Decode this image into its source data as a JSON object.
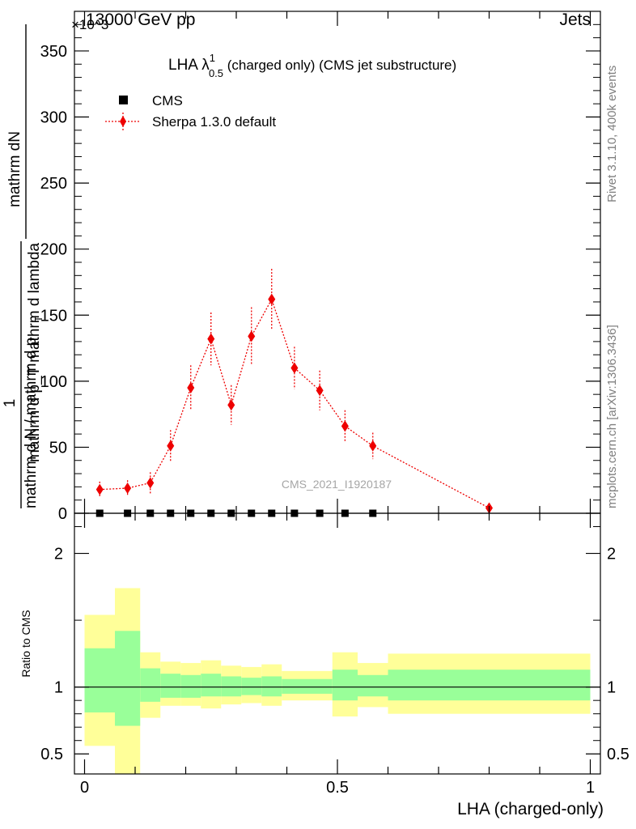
{
  "header": {
    "left": "13000 GeV pp",
    "right": "Jets",
    "exponent": "×10^3"
  },
  "side_labels": {
    "rivet": "Rivet 3.1.10,  400k events",
    "mcplots": "mcplots.cern.ch [arXiv:1306.3436]"
  },
  "chart_data": [
    {
      "type": "line",
      "title_main": "LHA λ",
      "title_sup": "1",
      "title_sub": "0.5",
      "title_rest": " (charged only) (CMS jet substructure)",
      "ylabel_num": "mathrm dN",
      "ylabel_den1": "mathrm d p_T mathrm d lambda",
      "ylabel_sub": "T",
      "ylabel_one": "1",
      "ylabel_line1": "mathrm d N / mathrm d p",
      "ylabel_line2": " mathrm d p  mathrm d lambda",
      "ylabel_prefix": "mathrm d N / mathrm d p",
      "ylim": [
        0,
        380
      ],
      "y_unit_scale": 1000,
      "yticks": [
        0,
        50,
        100,
        150,
        200,
        250,
        300,
        350
      ],
      "ytick_labels": [
        "0",
        "50",
        "100",
        "150",
        "200",
        "250",
        "300",
        "350"
      ],
      "xlim": [
        -0.02,
        1.02
      ],
      "watermark": "CMS_2021_I1920187",
      "legend": [
        "CMS",
        "Sherpa 1.3.0 default"
      ],
      "series": [
        {
          "name": "CMS",
          "x": [
            0.03,
            0.085,
            0.13,
            0.17,
            0.21,
            0.25,
            0.29,
            0.33,
            0.37,
            0.415,
            0.465,
            0.515,
            0.57
          ],
          "y": [
            0,
            0,
            0,
            0,
            0,
            0,
            0,
            0,
            0,
            0,
            0,
            0,
            0
          ]
        },
        {
          "name": "Sherpa 1.3.0 default",
          "x": [
            0.03,
            0.085,
            0.13,
            0.17,
            0.21,
            0.25,
            0.29,
            0.33,
            0.37,
            0.415,
            0.465,
            0.515,
            0.57,
            0.8
          ],
          "y": [
            18,
            19,
            23,
            51,
            95,
            132,
            82,
            134,
            162,
            110,
            93,
            66,
            51,
            4
          ],
          "yerr": [
            6,
            6,
            8,
            12,
            17,
            20,
            15,
            22,
            23,
            16,
            15,
            12,
            10,
            3
          ]
        }
      ]
    },
    {
      "type": "area",
      "ylabel": "Ratio to CMS",
      "xlabel": "LHA (charged-only)",
      "xlim": [
        -0.02,
        1.02
      ],
      "ylim": [
        0.35,
        2.3
      ],
      "yticks": [
        0.5,
        1,
        2
      ],
      "ytick_labels": [
        "0.5",
        "1",
        "2"
      ],
      "xticks": [
        0,
        0.5,
        1
      ],
      "xtick_labels": [
        "0",
        "0.5",
        "1"
      ],
      "ratio_line": 1,
      "bands": [
        {
          "x0": 0.0,
          "x1": 0.06,
          "g_lo": 0.81,
          "g_hi": 1.29,
          "y_lo": 0.56,
          "y_hi": 1.54
        },
        {
          "x0": 0.06,
          "x1": 0.11,
          "g_lo": 0.71,
          "g_hi": 1.42,
          "y_lo": 0.3,
          "y_hi": 1.74
        },
        {
          "x0": 0.11,
          "x1": 0.15,
          "g_lo": 0.89,
          "g_hi": 1.14,
          "y_lo": 0.77,
          "y_hi": 1.26
        },
        {
          "x0": 0.15,
          "x1": 0.19,
          "g_lo": 0.92,
          "g_hi": 1.1,
          "y_lo": 0.86,
          "y_hi": 1.19
        },
        {
          "x0": 0.19,
          "x1": 0.23,
          "g_lo": 0.92,
          "g_hi": 1.09,
          "y_lo": 0.86,
          "y_hi": 1.18
        },
        {
          "x0": 0.23,
          "x1": 0.27,
          "g_lo": 0.93,
          "g_hi": 1.1,
          "y_lo": 0.84,
          "y_hi": 1.2
        },
        {
          "x0": 0.27,
          "x1": 0.31,
          "g_lo": 0.93,
          "g_hi": 1.08,
          "y_lo": 0.87,
          "y_hi": 1.16
        },
        {
          "x0": 0.31,
          "x1": 0.35,
          "g_lo": 0.94,
          "g_hi": 1.07,
          "y_lo": 0.88,
          "y_hi": 1.15
        },
        {
          "x0": 0.35,
          "x1": 0.39,
          "g_lo": 0.93,
          "g_hi": 1.08,
          "y_lo": 0.86,
          "y_hi": 1.17
        },
        {
          "x0": 0.39,
          "x1": 0.44,
          "g_lo": 0.95,
          "g_hi": 1.06,
          "y_lo": 0.9,
          "y_hi": 1.12
        },
        {
          "x0": 0.44,
          "x1": 0.49,
          "g_lo": 0.95,
          "g_hi": 1.06,
          "y_lo": 0.9,
          "y_hi": 1.12
        },
        {
          "x0": 0.49,
          "x1": 0.54,
          "g_lo": 0.9,
          "g_hi": 1.13,
          "y_lo": 0.78,
          "y_hi": 1.26
        },
        {
          "x0": 0.54,
          "x1": 0.6,
          "g_lo": 0.93,
          "g_hi": 1.09,
          "y_lo": 0.85,
          "y_hi": 1.18
        },
        {
          "x0": 0.6,
          "x1": 1.0,
          "g_lo": 0.9,
          "g_hi": 1.13,
          "y_lo": 0.8,
          "y_hi": 1.25
        }
      ]
    }
  ],
  "colors": {
    "sherpa": "#ee0000",
    "cms": "#000000",
    "band_inner": "#99ff99",
    "band_outer": "#ffff99",
    "watermark": "#a6a6a6",
    "side_text": "#7f7f7f"
  }
}
